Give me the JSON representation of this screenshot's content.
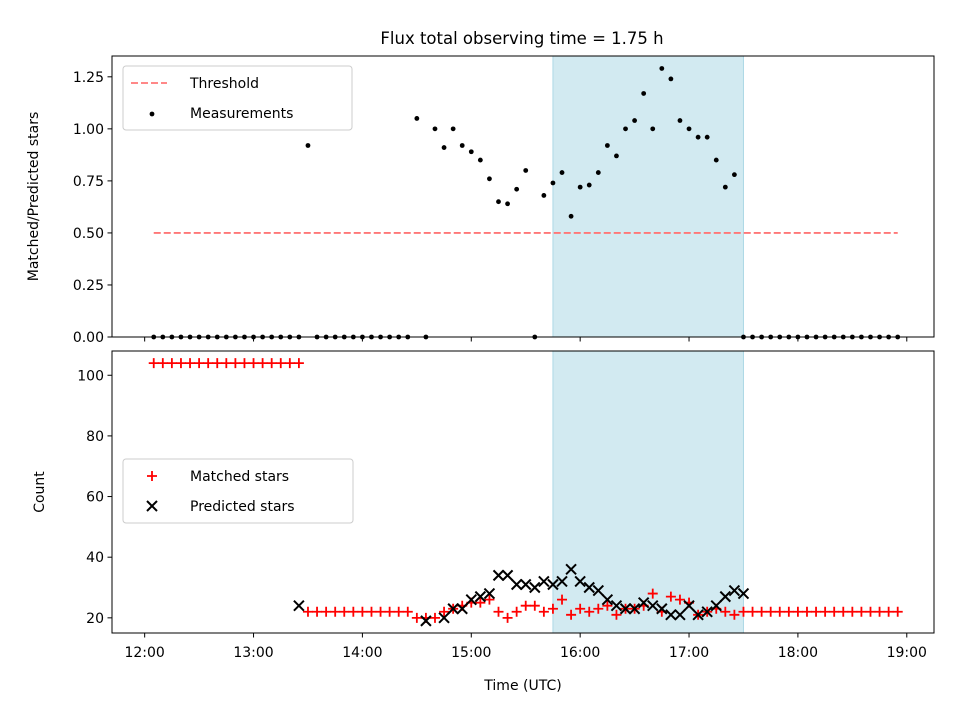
{
  "title": "Flux total observing time = 1.75 h",
  "colors": {
    "threshold": "#ff7777",
    "band": "#add8e6",
    "matched": "#ff0000",
    "predicted": "#000000",
    "measurements": "#000000"
  },
  "chart_data": [
    {
      "type": "scatter",
      "title": "Flux total observing time = 1.75 h",
      "xlabel": "",
      "ylabel": "Matched/Predicted stars",
      "xlim": [
        "11:42",
        "19:15"
      ],
      "ylim": [
        0,
        1.35
      ],
      "yticks": [
        "0.00",
        "0.25",
        "0.50",
        "0.75",
        "1.00",
        "1.25"
      ],
      "shaded_region": [
        "15:45",
        "17:30"
      ],
      "legend": "top-left",
      "grid": false,
      "series": [
        {
          "name": "Threshold",
          "style": "dashed-line",
          "x": [
            "12:05",
            "18:55"
          ],
          "values": [
            0.5,
            0.5
          ]
        },
        {
          "name": "Measurements",
          "style": "dots",
          "x": [
            "12:05",
            "12:10",
            "12:15",
            "12:20",
            "12:25",
            "12:30",
            "12:35",
            "12:40",
            "12:45",
            "12:50",
            "12:55",
            "13:00",
            "13:05",
            "13:10",
            "13:15",
            "13:20",
            "13:25",
            "13:30",
            "13:35",
            "13:40",
            "13:45",
            "13:50",
            "13:55",
            "14:00",
            "14:05",
            "14:10",
            "14:15",
            "14:20",
            "14:25",
            "14:30",
            "14:35",
            "14:40",
            "14:45",
            "14:50",
            "14:55",
            "15:00",
            "15:05",
            "15:10",
            "15:15",
            "15:20",
            "15:25",
            "15:30",
            "15:35",
            "15:40",
            "15:45",
            "15:50",
            "15:55",
            "16:00",
            "16:05",
            "16:10",
            "16:15",
            "16:20",
            "16:25",
            "16:30",
            "16:35",
            "16:40",
            "16:45",
            "16:50",
            "16:55",
            "17:00",
            "17:05",
            "17:10",
            "17:15",
            "17:20",
            "17:25",
            "17:30",
            "17:35",
            "17:40",
            "17:45",
            "17:50",
            "17:55",
            "18:00",
            "18:05",
            "18:10",
            "18:15",
            "18:20",
            "18:25",
            "18:30",
            "18:35",
            "18:40",
            "18:45",
            "18:50",
            "18:55"
          ],
          "values": [
            0,
            0,
            0,
            0,
            0,
            0,
            0,
            0,
            0,
            0,
            0,
            0,
            0,
            0,
            0,
            0,
            0,
            0.92,
            0,
            0,
            0,
            0,
            0,
            0,
            0,
            0,
            0,
            0,
            0,
            1.05,
            0,
            1.0,
            0.91,
            1.0,
            0.92,
            0.89,
            0.85,
            0.76,
            0.65,
            0.64,
            0.71,
            0.8,
            0,
            0.68,
            0.74,
            0.79,
            0.58,
            0.72,
            0.73,
            0.79,
            0.92,
            0.87,
            1.0,
            1.04,
            1.17,
            1.0,
            1.29,
            1.24,
            1.04,
            1.0,
            0.96,
            0.96,
            0.85,
            0.72,
            0.78,
            0,
            0,
            0,
            0,
            0,
            0,
            0,
            0,
            0,
            0,
            0,
            0,
            0,
            0,
            0,
            0,
            0,
            0
          ]
        }
      ]
    },
    {
      "type": "scatter",
      "xlabel": "Time (UTC)",
      "ylabel": "Count",
      "xlim": [
        "11:42",
        "19:15"
      ],
      "ylim": [
        15,
        108
      ],
      "yticks": [
        "20",
        "40",
        "60",
        "80",
        "100"
      ],
      "xticks": [
        "12:00",
        "13:00",
        "14:00",
        "15:00",
        "16:00",
        "17:00",
        "18:00",
        "19:00"
      ],
      "shaded_region": [
        "15:45",
        "17:30"
      ],
      "legend": "center-left",
      "grid": false,
      "series": [
        {
          "name": "Matched stars",
          "marker": "+",
          "x": [
            "12:05",
            "12:10",
            "12:15",
            "12:20",
            "12:25",
            "12:30",
            "12:35",
            "12:40",
            "12:45",
            "12:50",
            "12:55",
            "13:00",
            "13:05",
            "13:10",
            "13:15",
            "13:20",
            "13:25",
            "13:30",
            "13:35",
            "13:40",
            "13:45",
            "13:50",
            "13:55",
            "14:00",
            "14:05",
            "14:10",
            "14:15",
            "14:20",
            "14:25",
            "14:30",
            "14:35",
            "14:40",
            "14:45",
            "14:50",
            "14:55",
            "15:00",
            "15:05",
            "15:10",
            "15:15",
            "15:20",
            "15:25",
            "15:30",
            "15:35",
            "15:40",
            "15:45",
            "15:50",
            "15:55",
            "16:00",
            "16:05",
            "16:10",
            "16:15",
            "16:20",
            "16:25",
            "16:30",
            "16:35",
            "16:40",
            "16:45",
            "16:50",
            "16:55",
            "17:00",
            "17:05",
            "17:10",
            "17:15",
            "17:20",
            "17:25",
            "17:30",
            "17:35",
            "17:40",
            "17:45",
            "17:50",
            "17:55",
            "18:00",
            "18:05",
            "18:10",
            "18:15",
            "18:20",
            "18:25",
            "18:30",
            "18:35",
            "18:40",
            "18:45",
            "18:50",
            "18:55"
          ],
          "values": [
            104,
            104,
            104,
            104,
            104,
            104,
            104,
            104,
            104,
            104,
            104,
            104,
            104,
            104,
            104,
            104,
            104,
            22,
            22,
            22,
            22,
            22,
            22,
            22,
            22,
            22,
            22,
            22,
            22,
            20,
            20,
            20,
            22,
            23,
            24,
            25,
            25,
            26,
            22,
            20,
            22,
            24,
            24,
            22,
            23,
            26,
            21,
            23,
            22,
            23,
            24,
            21,
            23,
            23,
            24,
            28,
            22,
            27,
            26,
            25,
            21,
            22,
            23,
            22,
            21,
            22,
            22,
            22,
            22,
            22,
            22,
            22,
            22,
            22,
            22,
            22,
            22,
            22,
            22,
            22,
            22,
            22,
            22
          ]
        },
        {
          "name": "Predicted stars",
          "marker": "x",
          "x": [
            "13:25",
            "14:35",
            "14:45",
            "14:50",
            "14:55",
            "15:00",
            "15:05",
            "15:10",
            "15:15",
            "15:20",
            "15:25",
            "15:30",
            "15:35",
            "15:40",
            "15:45",
            "15:50",
            "15:55",
            "16:00",
            "16:05",
            "16:10",
            "16:15",
            "16:20",
            "16:25",
            "16:30",
            "16:35",
            "16:40",
            "16:45",
            "16:50",
            "16:55",
            "17:00",
            "17:05",
            "17:10",
            "17:15",
            "17:20",
            "17:25",
            "17:30"
          ],
          "values": [
            24,
            19,
            20,
            23,
            23,
            26,
            27,
            28,
            34,
            34,
            31,
            31,
            30,
            32,
            31,
            32,
            36,
            32,
            30,
            29,
            26,
            24,
            23,
            23,
            25,
            24,
            23,
            21,
            21,
            24,
            21,
            22,
            24,
            27,
            29,
            28
          ]
        }
      ]
    }
  ]
}
